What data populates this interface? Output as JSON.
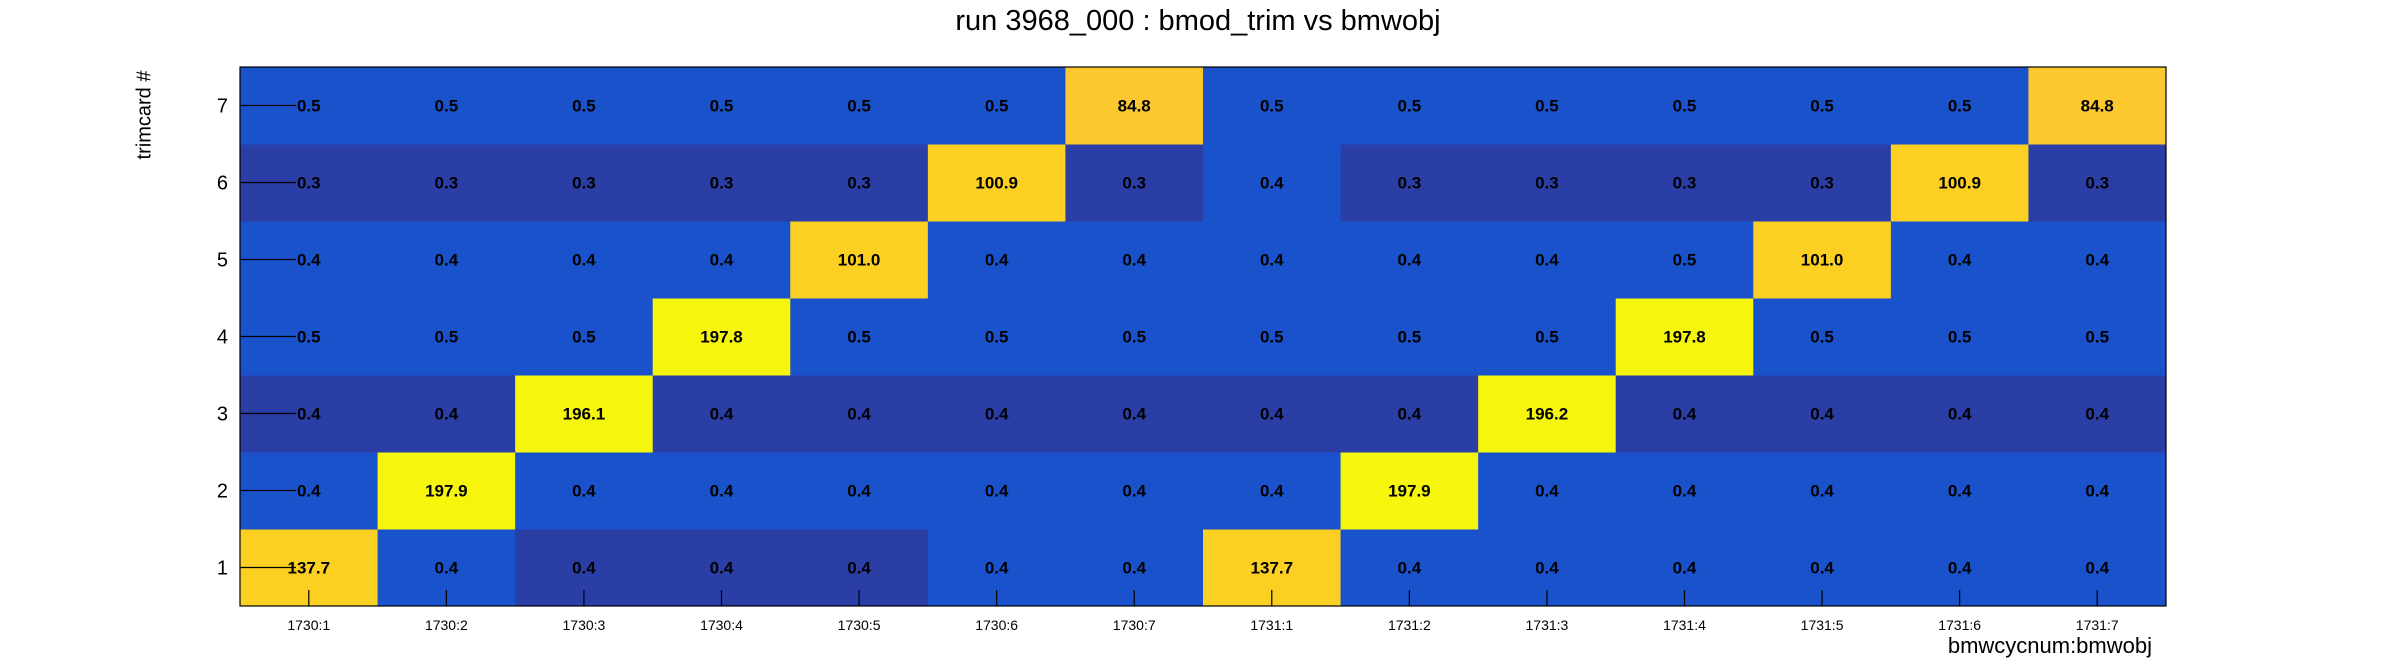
{
  "chart_data": {
    "type": "heatmap",
    "title": "run 3968_000 : bmod_trim vs bmwobj",
    "xlabel": "bmwcycnum:bmwobj",
    "ylabel": "trimcard #",
    "x_categories": [
      "1730:1",
      "1730:2",
      "1730:3",
      "1730:4",
      "1730:5",
      "1730:6",
      "1730:7",
      "1731:1",
      "1731:2",
      "1731:3",
      "1731:4",
      "1731:5",
      "1731:6",
      "1731:7"
    ],
    "y_categories": [
      "1",
      "2",
      "3",
      "4",
      "5",
      "6",
      "7"
    ],
    "values": [
      [
        "137.7",
        "0.4",
        "0.4",
        "0.4",
        "0.4",
        "0.4",
        "0.4",
        "137.7",
        "0.4",
        "0.4",
        "0.4",
        "0.4",
        "0.4",
        "0.4"
      ],
      [
        "0.4",
        "197.9",
        "0.4",
        "0.4",
        "0.4",
        "0.4",
        "0.4",
        "0.4",
        "197.9",
        "0.4",
        "0.4",
        "0.4",
        "0.4",
        "0.4"
      ],
      [
        "0.4",
        "0.4",
        "196.1",
        "0.4",
        "0.4",
        "0.4",
        "0.4",
        "0.4",
        "0.4",
        "196.2",
        "0.4",
        "0.4",
        "0.4",
        "0.4"
      ],
      [
        "0.5",
        "0.5",
        "0.5",
        "197.8",
        "0.5",
        "0.5",
        "0.5",
        "0.5",
        "0.5",
        "0.5",
        "197.8",
        "0.5",
        "0.5",
        "0.5"
      ],
      [
        "0.4",
        "0.4",
        "0.4",
        "0.4",
        "101.0",
        "0.4",
        "0.4",
        "0.4",
        "0.4",
        "0.4",
        "0.5",
        "101.0",
        "0.4",
        "0.4"
      ],
      [
        "0.3",
        "0.3",
        "0.3",
        "0.3",
        "0.3",
        "100.9",
        "0.3",
        "0.4",
        "0.3",
        "0.3",
        "0.3",
        "0.3",
        "100.9",
        "0.3"
      ],
      [
        "0.5",
        "0.5",
        "0.5",
        "0.5",
        "0.5",
        "0.5",
        "84.8",
        "0.5",
        "0.5",
        "0.5",
        "0.5",
        "0.5",
        "0.5",
        "84.8"
      ]
    ],
    "colors": {
      "dark_blue": "#2a3ea6",
      "blue": "#1a52cc",
      "yellow_high": "#f5f50e",
      "yellow_mid": "#fbd022",
      "yellow_low": "#fbc830"
    }
  }
}
